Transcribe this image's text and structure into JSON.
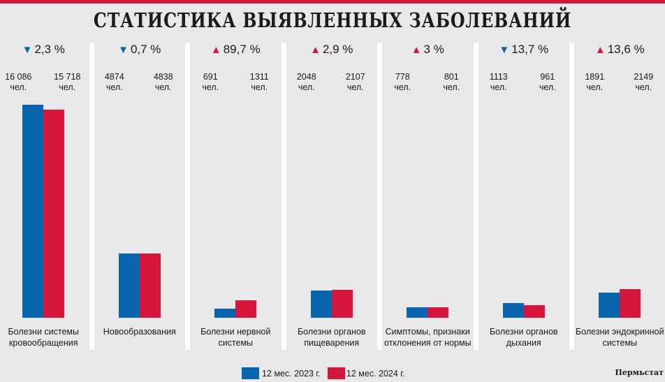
{
  "chart_data": {
    "type": "bar",
    "title": "СТАТИСТИКА ВЫЯВЛЕННЫХ ЗАБОЛЕВАНИЙ",
    "categories": [
      "Болезни системы\nкровообращения",
      "Новообразования",
      "Болезни нервной\nсистемы",
      "Болезни органов\nпищеварения",
      "Симптомы, признаки\nотклонения от нормы",
      "Болезни органов\nдыхания",
      "Болезни эндокринной\nсистемы"
    ],
    "series": [
      {
        "name": "12 мес. 2023 г.",
        "color": "#0765ad",
        "values": [
          16086,
          4874,
          691,
          2048,
          778,
          1113,
          1891
        ]
      },
      {
        "name": "12 мес. 2024 г.",
        "color": "#d6163a",
        "values": [
          15718,
          4838,
          1311,
          2107,
          801,
          961,
          2149
        ]
      }
    ],
    "value_labels": [
      [
        "16 086",
        "15 718"
      ],
      [
        "4874",
        "4838"
      ],
      [
        "691",
        "1311"
      ],
      [
        "2048",
        "2107"
      ],
      [
        "778",
        "801"
      ],
      [
        "1113",
        "961"
      ],
      [
        "1891",
        "2149"
      ]
    ],
    "unit": "чел.",
    "changes": [
      {
        "dir": "down",
        "text": "2,3 %"
      },
      {
        "dir": "down",
        "text": "0,7 %"
      },
      {
        "dir": "up",
        "text": "89,7 %"
      },
      {
        "dir": "up",
        "text": "2,9 %"
      },
      {
        "dir": "up",
        "text": "3 %"
      },
      {
        "dir": "down",
        "text": "13,7 %"
      },
      {
        "dir": "up",
        "text": "13,6 %"
      }
    ],
    "legend_placement": "bottom",
    "grid": false,
    "source": "Пермьстат"
  },
  "colors": {
    "up": "#d6163a",
    "down": "#0765ad",
    "accent": "#d6163a"
  }
}
